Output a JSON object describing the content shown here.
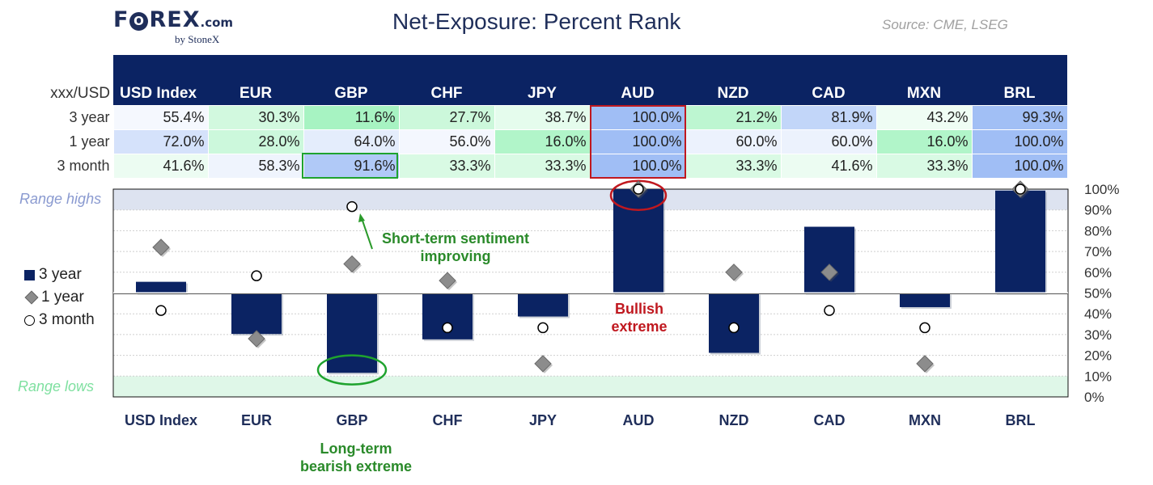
{
  "header": {
    "logo_pre": "F",
    "logo_o": "O",
    "logo_post": "REX",
    "logo_dotcom": ".com",
    "logo_sub": "by StoneX",
    "title": "Net-Exposure: Percent Rank",
    "source": "Source: CME, LSEG"
  },
  "table": {
    "corner": "xxx/USD",
    "columns": [
      "USD Index",
      "EUR",
      "GBP",
      "CHF",
      "JPY",
      "AUD",
      "NZD",
      "CAD",
      "MXN",
      "BRL"
    ],
    "rows": [
      {
        "label": "3 year",
        "values": [
          "55.4%",
          "30.3%",
          "11.6%",
          "27.7%",
          "38.7%",
          "100.0%",
          "21.2%",
          "81.9%",
          "43.2%",
          "99.3%"
        ]
      },
      {
        "label": "1 year",
        "values": [
          "72.0%",
          "28.0%",
          "64.0%",
          "56.0%",
          "16.0%",
          "100.0%",
          "60.0%",
          "60.0%",
          "16.0%",
          "100.0%"
        ]
      },
      {
        "label": "3 month",
        "values": [
          "41.6%",
          "58.3%",
          "91.6%",
          "33.3%",
          "33.3%",
          "100.0%",
          "33.3%",
          "41.6%",
          "33.3%",
          "100.0%"
        ]
      }
    ]
  },
  "legend": {
    "three_year": "3 year",
    "one_year": "1 year",
    "three_month": "3 month"
  },
  "range": {
    "highs": "Range highs",
    "lows": "Range lows"
  },
  "annotations": {
    "short_term_1": "Short-term sentiment",
    "short_term_2": "improving",
    "bullish_1": "Bullish",
    "bullish_2": "extreme",
    "long_term_1": "Long-term",
    "long_term_2": "bearish extreme"
  },
  "colors": {
    "bar": "#0b2363",
    "diamond": "#8c8c8c",
    "high_band": "#dde3f0",
    "low_band": "#dff7e8",
    "red": "#c0181f",
    "green": "#1fa32e"
  },
  "chart_data": {
    "type": "bar",
    "categories": [
      "USD Index",
      "EUR",
      "GBP",
      "CHF",
      "JPY",
      "AUD",
      "NZD",
      "CAD",
      "MXN",
      "BRL"
    ],
    "baseline": 50,
    "series": [
      {
        "name": "3 year",
        "kind": "bar",
        "values": [
          55.4,
          30.3,
          11.6,
          27.7,
          38.7,
          100.0,
          21.2,
          81.9,
          43.2,
          99.3
        ]
      },
      {
        "name": "1 year",
        "kind": "diamond",
        "values": [
          72.0,
          28.0,
          64.0,
          56.0,
          16.0,
          100.0,
          60.0,
          60.0,
          16.0,
          100.0
        ]
      },
      {
        "name": "3 month",
        "kind": "circle",
        "values": [
          41.6,
          58.3,
          91.6,
          33.3,
          33.3,
          100.0,
          33.3,
          41.6,
          33.3,
          100.0
        ]
      }
    ],
    "y_ticks": [
      "0%",
      "10%",
      "20%",
      "30%",
      "40%",
      "50%",
      "60%",
      "70%",
      "80%",
      "90%",
      "100%"
    ],
    "ylim": [
      0,
      100
    ],
    "high_band": [
      90,
      100
    ],
    "low_band": [
      0,
      10
    ],
    "grid": true,
    "legend_position": "left"
  }
}
